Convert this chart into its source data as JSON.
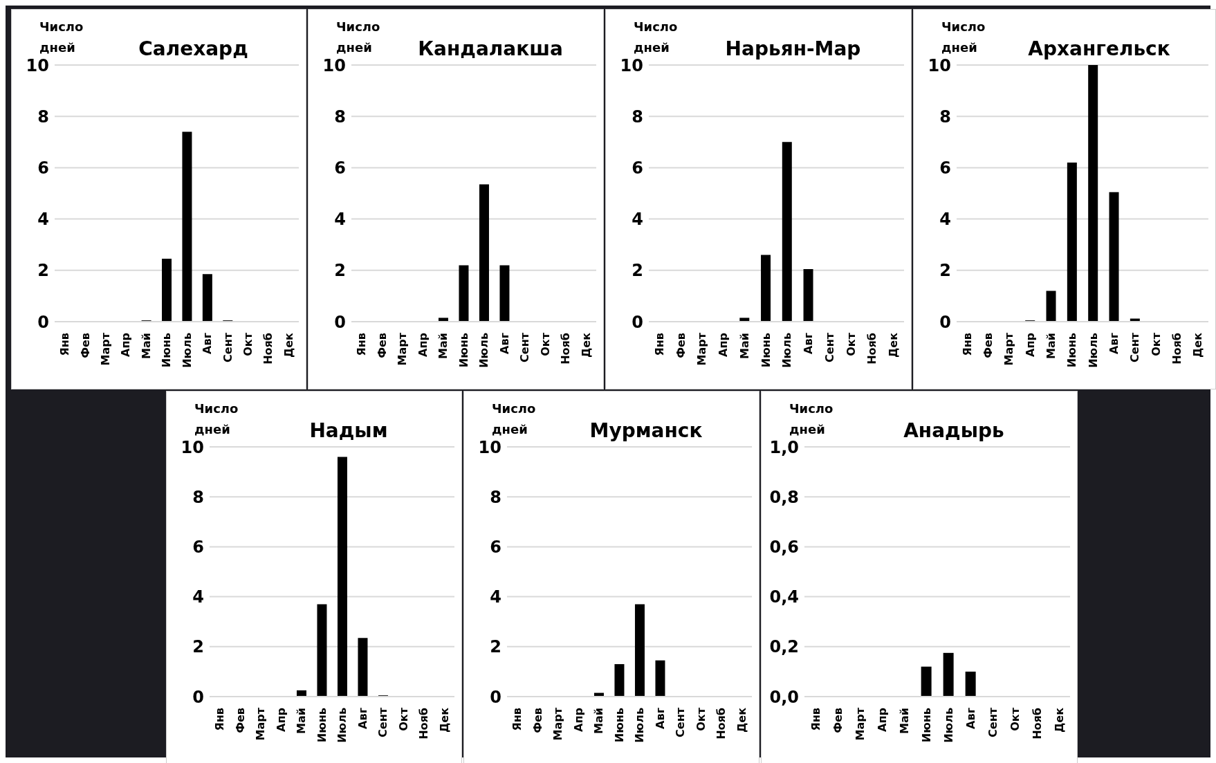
{
  "chart_data": [
    {
      "type": "bar",
      "title": "Салехард",
      "ylabel": "Число дней",
      "categories": [
        "Янв",
        "Фев",
        "Март",
        "Апр",
        "Май",
        "Июнь",
        "Июль",
        "Авг",
        "Сент",
        "Окт",
        "Нояб",
        "Дек"
      ],
      "values": [
        0,
        0,
        0,
        0,
        0.05,
        2.45,
        7.4,
        1.85,
        0.05,
        0,
        0,
        0
      ],
      "color": "#000000",
      "ylim": [
        0,
        10
      ],
      "yticks": [
        0,
        2,
        4,
        6,
        8,
        10
      ],
      "grid": "y"
    },
    {
      "type": "bar",
      "title": "Кандалакша",
      "ylabel": "Число дней",
      "categories": [
        "Янв",
        "Фев",
        "Март",
        "Апр",
        "Май",
        "Июнь",
        "Июль",
        "Авг",
        "Сент",
        "Окт",
        "Нояб",
        "Дек"
      ],
      "values": [
        0,
        0,
        0,
        0,
        0.15,
        2.2,
        5.35,
        2.2,
        0,
        0,
        0,
        0
      ],
      "color": "#000000",
      "ylim": [
        0,
        10
      ],
      "yticks": [
        0,
        2,
        4,
        6,
        8,
        10
      ],
      "grid": "y"
    },
    {
      "type": "bar",
      "title": "Нарьян-Мар",
      "ylabel": "Число дней",
      "categories": [
        "Янв",
        "Фев",
        "Март",
        "Апр",
        "Май",
        "Июнь",
        "Июль",
        "Авг",
        "Сент",
        "Окт",
        "Нояб",
        "Дек"
      ],
      "values": [
        0,
        0,
        0,
        0,
        0.15,
        2.6,
        7.0,
        2.05,
        0,
        0,
        0,
        0
      ],
      "color": "#000000",
      "ylim": [
        0,
        10
      ],
      "yticks": [
        0,
        2,
        4,
        6,
        8,
        10
      ],
      "grid": "y"
    },
    {
      "type": "bar",
      "title": "Архангельск",
      "ylabel": "Число дней",
      "categories": [
        "Янв",
        "Фев",
        "Март",
        "Апр",
        "Май",
        "Июнь",
        "Июль",
        "Авг",
        "Сент",
        "Окт",
        "Нояб",
        "Дек"
      ],
      "values": [
        0,
        0,
        0,
        0.05,
        1.2,
        6.2,
        10,
        5.05,
        0.12,
        0,
        0,
        0
      ],
      "color": "#000000",
      "ylim": [
        0,
        10
      ],
      "yticks": [
        0,
        2,
        4,
        6,
        8,
        10
      ],
      "grid": "y"
    },
    {
      "type": "bar",
      "title": "Надым",
      "ylabel": "Число дней",
      "categories": [
        "Янв",
        "Фев",
        "Март",
        "Апр",
        "Май",
        "Июнь",
        "Июль",
        "Авг",
        "Сент",
        "Окт",
        "Нояб",
        "Дек"
      ],
      "values": [
        0,
        0,
        0,
        0,
        0.25,
        3.7,
        9.6,
        2.35,
        0.05,
        0,
        0,
        0
      ],
      "color": "#000000",
      "ylim": [
        0,
        10
      ],
      "yticks": [
        0,
        2,
        4,
        6,
        8,
        10
      ],
      "grid": "y"
    },
    {
      "type": "bar",
      "title": "Мурманск",
      "ylabel": "Число дней",
      "categories": [
        "Янв",
        "Фев",
        "Март",
        "Апр",
        "Май",
        "Июнь",
        "Июль",
        "Авг",
        "Сент",
        "Окт",
        "Нояб",
        "Дек"
      ],
      "values": [
        0,
        0,
        0,
        0,
        0.15,
        1.3,
        3.7,
        1.45,
        0,
        0,
        0,
        0
      ],
      "color": "#000000",
      "ylim": [
        0,
        10
      ],
      "yticks": [
        0,
        2,
        4,
        6,
        8,
        10
      ],
      "grid": "y"
    },
    {
      "type": "bar",
      "title": "Анадырь",
      "ylabel": "Число дней",
      "categories": [
        "Янв",
        "Фев",
        "Март",
        "Апр",
        "Май",
        "Июнь",
        "Июль",
        "Авг",
        "Сент",
        "Окт",
        "Нояб",
        "Дек"
      ],
      "values": [
        0,
        0,
        0,
        0,
        0,
        0.12,
        0.175,
        0.1,
        0,
        0,
        0,
        0
      ],
      "color": "#000000",
      "ylim": [
        0,
        1
      ],
      "yticks": [
        {
          "value": 0,
          "label": "0,0"
        },
        {
          "value": 0.2,
          "label": "0,2"
        },
        {
          "value": 0.4,
          "label": "0,4"
        },
        {
          "value": 0.6,
          "label": "0,6"
        },
        {
          "value": 0.8,
          "label": "0,8"
        },
        {
          "value": 1,
          "label": "1,0"
        }
      ],
      "grid": "y"
    }
  ]
}
